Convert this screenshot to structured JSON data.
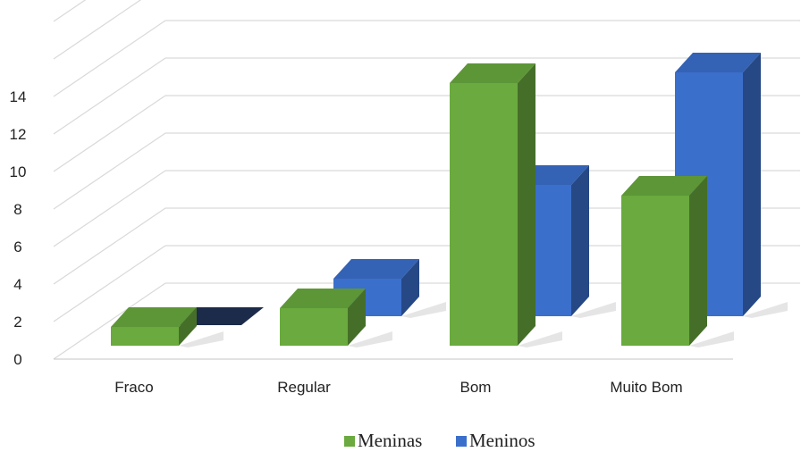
{
  "chart_data": {
    "type": "bar",
    "style": "3d-clustered",
    "categories": [
      "Fraco",
      "Regular",
      "Bom",
      "Muito Bom"
    ],
    "series": [
      {
        "name": "Meninas",
        "values": [
          1,
          2,
          14,
          8
        ],
        "color": "#6aaa3e"
      },
      {
        "name": "Meninos",
        "values": [
          0,
          2,
          7,
          13
        ],
        "color": "#3b6fcc"
      }
    ],
    "y_ticks": [
      "0",
      "2",
      "4",
      "6",
      "8",
      "10",
      "12",
      "14"
    ],
    "ylim": [
      0,
      18
    ],
    "grid": true,
    "legend_position": "bottom"
  }
}
